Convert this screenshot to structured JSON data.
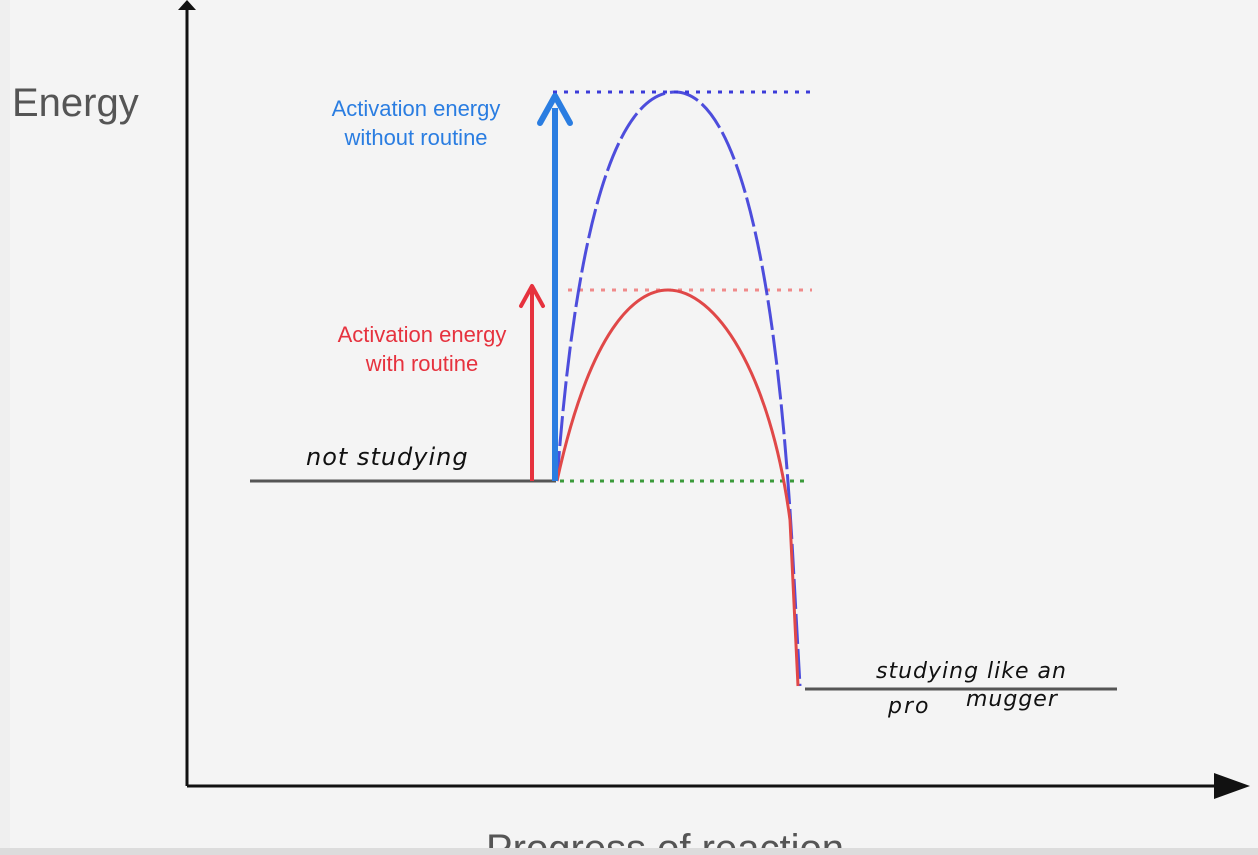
{
  "axes": {
    "y_label": "Energy",
    "x_label": "Progress of reaction"
  },
  "labels": {
    "blue_line1": "Activation energy",
    "blue_line2": "without routine",
    "red_line1": "Activation energy",
    "red_line2": "with routine",
    "start_state": "not studying",
    "end_line1": "studying like an",
    "end_line2": "pro",
    "end_line3": "mugger"
  },
  "colors": {
    "blue": "#2a7de1",
    "blue_curve": "#3b3bd9",
    "red": "#e6323e",
    "red_curve": "#e04848",
    "green": "#3a9a3a",
    "axis": "#111111",
    "baseline": "#555555"
  }
}
